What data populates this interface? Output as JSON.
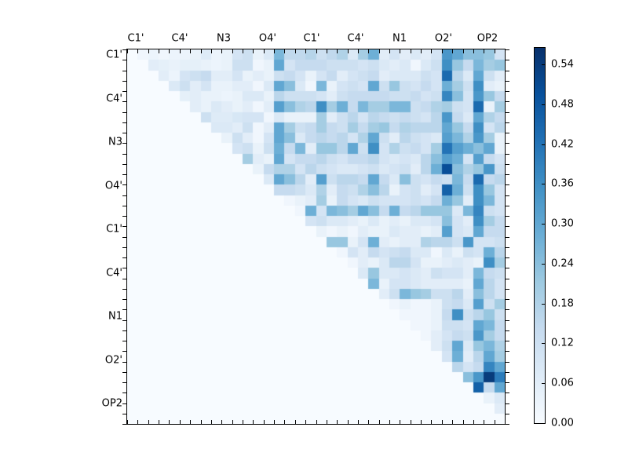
{
  "chart_data": {
    "type": "heatmap",
    "title": "",
    "description": "Upper-triangular pairwise correlation heatmap (Blues colormap) over 36 atom positions grouped under 9 axis labels; lower triangle is empty (zero).",
    "n": 36,
    "cells_per_label_group": 4,
    "x_tick_labels": [
      "C1'",
      "C4'",
      "N3",
      "O4'",
      "C1'",
      "C4'",
      "N1",
      "O2'",
      "OP2"
    ],
    "y_tick_labels": [
      "C1'",
      "C4'",
      "N3",
      "O4'",
      "C1'",
      "C4'",
      "N1",
      "O2'",
      "OP2"
    ],
    "vmin": 0.0,
    "vmax": 0.565,
    "grid": false,
    "legend_position": "right-colorbar",
    "colorbar_tick_values": [
      0.0,
      0.06,
      0.12,
      0.18,
      0.24,
      0.3,
      0.36,
      0.42,
      0.48,
      0.54
    ],
    "colorbar_tick_labels": [
      "0.00",
      "0.06",
      "0.12",
      "0.18",
      "0.24",
      "0.30",
      "0.36",
      "0.42",
      "0.48",
      "0.54"
    ],
    "colormap": {
      "name": "Blues",
      "stops_t": [
        0,
        0.125,
        0.25,
        0.375,
        0.5,
        0.625,
        0.75,
        0.875,
        1.0
      ],
      "stops_rgb": [
        [
          247,
          251,
          255
        ],
        [
          222,
          235,
          247
        ],
        [
          198,
          219,
          239
        ],
        [
          158,
          202,
          225
        ],
        [
          107,
          174,
          214
        ],
        [
          66,
          146,
          198
        ],
        [
          33,
          113,
          181
        ],
        [
          8,
          81,
          156
        ],
        [
          8,
          48,
          107
        ]
      ]
    },
    "accent_colors": {
      "min": "#f7fbff",
      "max": "#08306b",
      "frame": "#000000",
      "background": "#ffffff"
    },
    "matrix": [
      [
        0,
        0.02,
        0.03,
        0.02,
        0.03,
        0.03,
        0.04,
        0.07,
        0.03,
        0.04,
        0.1,
        0.12,
        0.04,
        0.08,
        0.26,
        0.15,
        0.15,
        0.17,
        0.12,
        0.15,
        0.18,
        0.08,
        0.2,
        0.28,
        0.06,
        0.1,
        0.06,
        0.08,
        0.06,
        0.1,
        0.34,
        0.3,
        0.24,
        0.24,
        0.22,
        0.1
      ],
      [
        0,
        0,
        0.06,
        0.05,
        0.04,
        0.05,
        0.05,
        0.04,
        0.03,
        0.04,
        0.12,
        0.12,
        0.02,
        0.04,
        0.3,
        0.1,
        0.14,
        0.14,
        0.14,
        0.12,
        0.12,
        0.12,
        0.1,
        0.12,
        0.08,
        0.06,
        0.08,
        0.02,
        0.08,
        0.12,
        0.36,
        0.22,
        0.14,
        0.26,
        0.2,
        0.22
      ],
      [
        0,
        0,
        0,
        0.06,
        0.03,
        0.1,
        0.12,
        0.14,
        0.06,
        0.06,
        0.1,
        0.04,
        0.06,
        0.04,
        0.12,
        0.14,
        0.1,
        0.04,
        0.1,
        0.14,
        0.06,
        0.1,
        0.12,
        0.14,
        0.06,
        0.08,
        0.08,
        0.08,
        0.12,
        0.1,
        0.44,
        0.16,
        0.08,
        0.3,
        0.12,
        0.06
      ],
      [
        0,
        0,
        0,
        0,
        0.08,
        0.12,
        0.06,
        0.1,
        0.04,
        0.04,
        0.06,
        0.06,
        0.02,
        0.08,
        0.3,
        0.24,
        0.08,
        0.02,
        0.26,
        0.04,
        0.1,
        0.12,
        0.1,
        0.3,
        0.12,
        0.22,
        0.12,
        0.1,
        0.14,
        0.1,
        0.28,
        0.2,
        0.12,
        0.36,
        0.06,
        0.04
      ],
      [
        0,
        0,
        0,
        0,
        0,
        0.05,
        0.06,
        0.04,
        0.04,
        0.03,
        0.04,
        0.08,
        0.08,
        0.04,
        0.16,
        0.12,
        0.12,
        0.12,
        0.1,
        0.06,
        0.12,
        0.14,
        0.14,
        0.14,
        0.14,
        0.12,
        0.12,
        0.14,
        0.1,
        0.12,
        0.38,
        0.24,
        0.1,
        0.34,
        0.22,
        0.14
      ],
      [
        0,
        0,
        0,
        0,
        0,
        0,
        0.06,
        0.04,
        0.08,
        0.06,
        0.04,
        0.06,
        0.02,
        0.06,
        0.32,
        0.24,
        0.18,
        0.16,
        0.36,
        0.2,
        0.28,
        0.14,
        0.26,
        0.2,
        0.2,
        0.26,
        0.26,
        0.12,
        0.14,
        0.18,
        0.2,
        0.12,
        0.1,
        0.44,
        0.04,
        0.2
      ],
      [
        0,
        0,
        0,
        0,
        0,
        0,
        0,
        0.12,
        0.07,
        0.07,
        0.09,
        0.1,
        0.1,
        0.02,
        0.08,
        0.04,
        0.04,
        0.04,
        0.2,
        0.06,
        0.12,
        0.16,
        0.1,
        0.16,
        0.14,
        0.12,
        0.14,
        0.12,
        0.1,
        0.16,
        0.34,
        0.14,
        0.08,
        0.3,
        0.18,
        0.14
      ],
      [
        0,
        0,
        0,
        0,
        0,
        0,
        0,
        0,
        0.08,
        0.08,
        0.06,
        0.12,
        0.02,
        0.06,
        0.3,
        0.2,
        0.12,
        0.14,
        0.2,
        0.14,
        0.12,
        0.2,
        0.14,
        0.2,
        0.22,
        0.14,
        0.18,
        0.16,
        0.16,
        0.16,
        0.3,
        0.22,
        0.14,
        0.36,
        0.1,
        0.16
      ],
      [
        0,
        0,
        0,
        0,
        0,
        0,
        0,
        0,
        0,
        0.04,
        0.12,
        0.06,
        0.02,
        0.1,
        0.3,
        0.24,
        0.08,
        0.14,
        0.16,
        0.14,
        0.16,
        0.1,
        0.18,
        0.3,
        0.12,
        0.06,
        0.16,
        0.12,
        0.1,
        0.08,
        0.32,
        0.26,
        0.18,
        0.34,
        0.2,
        0.04
      ],
      [
        0,
        0,
        0,
        0,
        0,
        0,
        0,
        0,
        0,
        0,
        0.1,
        0.12,
        0.04,
        0.12,
        0.28,
        0.14,
        0.26,
        0.06,
        0.22,
        0.22,
        0.16,
        0.3,
        0.12,
        0.36,
        0.1,
        0.18,
        0.12,
        0.14,
        0.1,
        0.2,
        0.42,
        0.32,
        0.28,
        0.24,
        0.3,
        0.04
      ],
      [
        0,
        0,
        0,
        0,
        0,
        0,
        0,
        0,
        0,
        0,
        0,
        0.2,
        0.06,
        0.04,
        0.3,
        0.1,
        0.14,
        0.14,
        0.16,
        0.12,
        0.1,
        0.14,
        0.14,
        0.16,
        0.1,
        0.08,
        0.1,
        0.08,
        0.16,
        0.24,
        0.32,
        0.28,
        0.1,
        0.32,
        0.14,
        0.1
      ],
      [
        0,
        0,
        0,
        0,
        0,
        0,
        0,
        0,
        0,
        0,
        0,
        0,
        0.04,
        0.14,
        0.18,
        0.18,
        0.1,
        0.16,
        0.12,
        0.1,
        0.08,
        0.08,
        0.1,
        0.12,
        0.08,
        0.1,
        0.12,
        0.06,
        0.16,
        0.28,
        0.5,
        0.24,
        0.18,
        0.22,
        0.34,
        0.12
      ],
      [
        0,
        0,
        0,
        0,
        0,
        0,
        0,
        0,
        0,
        0,
        0,
        0,
        0,
        0.08,
        0.3,
        0.24,
        0.16,
        0.06,
        0.32,
        0.12,
        0.16,
        0.16,
        0.14,
        0.3,
        0.14,
        0.08,
        0.24,
        0.12,
        0.1,
        0.14,
        0.12,
        0.26,
        0.14,
        0.44,
        0.14,
        0.16
      ],
      [
        0,
        0,
        0,
        0,
        0,
        0,
        0,
        0,
        0,
        0,
        0,
        0,
        0,
        0,
        0.14,
        0.14,
        0.12,
        0.08,
        0.18,
        0.06,
        0.14,
        0.12,
        0.18,
        0.24,
        0.16,
        0.04,
        0.1,
        0.12,
        0.06,
        0.1,
        0.46,
        0.28,
        0.12,
        0.36,
        0.22,
        0.1
      ],
      [
        0,
        0,
        0,
        0,
        0,
        0,
        0,
        0,
        0,
        0,
        0,
        0,
        0,
        0,
        0,
        0.02,
        0.04,
        0.06,
        0.2,
        0.04,
        0.14,
        0.1,
        0.08,
        0.12,
        0.1,
        0.1,
        0.1,
        0.12,
        0.1,
        0.14,
        0.28,
        0.22,
        0.06,
        0.36,
        0.26,
        0.1
      ],
      [
        0,
        0,
        0,
        0,
        0,
        0,
        0,
        0,
        0,
        0,
        0,
        0,
        0,
        0,
        0,
        0,
        0.02,
        0.28,
        0.1,
        0.26,
        0.24,
        0.2,
        0.3,
        0.24,
        0.14,
        0.28,
        0.14,
        0.16,
        0.22,
        0.22,
        0.22,
        0.08,
        0.26,
        0.38,
        0.12,
        0.1
      ],
      [
        0,
        0,
        0,
        0,
        0,
        0,
        0,
        0,
        0,
        0,
        0,
        0,
        0,
        0,
        0,
        0,
        0,
        0.1,
        0.12,
        0.08,
        0.08,
        0.06,
        0.04,
        0.08,
        0.04,
        0.06,
        0.04,
        0.08,
        0.08,
        0.1,
        0.24,
        0.1,
        0.06,
        0.36,
        0.2,
        0.14
      ],
      [
        0,
        0,
        0,
        0,
        0,
        0,
        0,
        0,
        0,
        0,
        0,
        0,
        0,
        0,
        0,
        0,
        0,
        0,
        0.04,
        0.02,
        0.04,
        0.02,
        0.06,
        0.04,
        0.04,
        0.08,
        0.06,
        0.06,
        0.04,
        0.06,
        0.32,
        0.1,
        0.08,
        0.3,
        0.14,
        0.14
      ],
      [
        0,
        0,
        0,
        0,
        0,
        0,
        0,
        0,
        0,
        0,
        0,
        0,
        0,
        0,
        0,
        0,
        0,
        0,
        0,
        0.22,
        0.22,
        0.04,
        0.1,
        0.28,
        0.06,
        0.04,
        0.06,
        0.06,
        0.18,
        0.16,
        0.16,
        0.12,
        0.34,
        0.1,
        0.1,
        0.12
      ],
      [
        0,
        0,
        0,
        0,
        0,
        0,
        0,
        0,
        0,
        0,
        0,
        0,
        0,
        0,
        0,
        0,
        0,
        0,
        0,
        0,
        0.02,
        0.1,
        0.06,
        0.14,
        0.1,
        0.12,
        0.14,
        0.08,
        0.08,
        0.02,
        0.08,
        0.04,
        0.12,
        0.1,
        0.28,
        0.16
      ],
      [
        0,
        0,
        0,
        0,
        0,
        0,
        0,
        0,
        0,
        0,
        0,
        0,
        0,
        0,
        0,
        0,
        0,
        0,
        0,
        0,
        0,
        0.02,
        0.06,
        0.04,
        0.08,
        0.16,
        0.16,
        0.1,
        0.04,
        0.04,
        0.06,
        0.08,
        0.06,
        0.04,
        0.36,
        0.2
      ],
      [
        0,
        0,
        0,
        0,
        0,
        0,
        0,
        0,
        0,
        0,
        0,
        0,
        0,
        0,
        0,
        0,
        0,
        0,
        0,
        0,
        0,
        0,
        0.08,
        0.22,
        0.08,
        0.08,
        0.1,
        0.08,
        0.06,
        0.12,
        0.1,
        0.1,
        0.06,
        0.26,
        0.14,
        0.12
      ],
      [
        0,
        0,
        0,
        0,
        0,
        0,
        0,
        0,
        0,
        0,
        0,
        0,
        0,
        0,
        0,
        0,
        0,
        0,
        0,
        0,
        0,
        0,
        0,
        0.26,
        0.04,
        0.1,
        0.1,
        0.08,
        0.06,
        0.06,
        0.06,
        0.06,
        0.04,
        0.3,
        0.16,
        0.1
      ],
      [
        0,
        0,
        0,
        0,
        0,
        0,
        0,
        0,
        0,
        0,
        0,
        0,
        0,
        0,
        0,
        0,
        0,
        0,
        0,
        0,
        0,
        0,
        0,
        0,
        0.06,
        0.12,
        0.26,
        0.22,
        0.2,
        0.12,
        0.12,
        0.16,
        0.06,
        0.24,
        0.16,
        0.1
      ],
      [
        0,
        0,
        0,
        0,
        0,
        0,
        0,
        0,
        0,
        0,
        0,
        0,
        0,
        0,
        0,
        0,
        0,
        0,
        0,
        0,
        0,
        0,
        0,
        0,
        0,
        0.02,
        0.04,
        0.02,
        0.02,
        0.04,
        0.12,
        0.14,
        0.08,
        0.32,
        0.12,
        0.2
      ],
      [
        0,
        0,
        0,
        0,
        0,
        0,
        0,
        0,
        0,
        0,
        0,
        0,
        0,
        0,
        0,
        0,
        0,
        0,
        0,
        0,
        0,
        0,
        0,
        0,
        0,
        0,
        0.02,
        0.02,
        0.02,
        0.04,
        0.14,
        0.36,
        0.12,
        0.16,
        0.22,
        0.12
      ],
      [
        0,
        0,
        0,
        0,
        0,
        0,
        0,
        0,
        0,
        0,
        0,
        0,
        0,
        0,
        0,
        0,
        0,
        0,
        0,
        0,
        0,
        0,
        0,
        0,
        0,
        0,
        0,
        0.02,
        0.02,
        0.04,
        0.12,
        0.12,
        0.1,
        0.3,
        0.26,
        0.14
      ],
      [
        0,
        0,
        0,
        0,
        0,
        0,
        0,
        0,
        0,
        0,
        0,
        0,
        0,
        0,
        0,
        0,
        0,
        0,
        0,
        0,
        0,
        0,
        0,
        0,
        0,
        0,
        0,
        0,
        0.02,
        0.06,
        0.1,
        0.14,
        0.12,
        0.34,
        0.2,
        0.14
      ],
      [
        0,
        0,
        0,
        0,
        0,
        0,
        0,
        0,
        0,
        0,
        0,
        0,
        0,
        0,
        0,
        0,
        0,
        0,
        0,
        0,
        0,
        0,
        0,
        0,
        0,
        0,
        0,
        0,
        0,
        0.06,
        0.12,
        0.3,
        0.08,
        0.22,
        0.26,
        0.18
      ],
      [
        0,
        0,
        0,
        0,
        0,
        0,
        0,
        0,
        0,
        0,
        0,
        0,
        0,
        0,
        0,
        0,
        0,
        0,
        0,
        0,
        0,
        0,
        0,
        0,
        0,
        0,
        0,
        0,
        0,
        0,
        0.1,
        0.28,
        0.06,
        0.16,
        0.3,
        0.2
      ],
      [
        0,
        0,
        0,
        0,
        0,
        0,
        0,
        0,
        0,
        0,
        0,
        0,
        0,
        0,
        0,
        0,
        0,
        0,
        0,
        0,
        0,
        0,
        0,
        0,
        0,
        0,
        0,
        0,
        0,
        0,
        0,
        0.16,
        0.1,
        0.14,
        0.38,
        0.3
      ],
      [
        0,
        0,
        0,
        0,
        0,
        0,
        0,
        0,
        0,
        0,
        0,
        0,
        0,
        0,
        0,
        0,
        0,
        0,
        0,
        0,
        0,
        0,
        0,
        0,
        0,
        0,
        0,
        0,
        0,
        0,
        0,
        0,
        0.24,
        0.34,
        0.54,
        0.4
      ],
      [
        0,
        0,
        0,
        0,
        0,
        0,
        0,
        0,
        0,
        0,
        0,
        0,
        0,
        0,
        0,
        0,
        0,
        0,
        0,
        0,
        0,
        0,
        0,
        0,
        0,
        0,
        0,
        0,
        0,
        0,
        0,
        0,
        0,
        0.46,
        0.14,
        0.3
      ],
      [
        0,
        0,
        0,
        0,
        0,
        0,
        0,
        0,
        0,
        0,
        0,
        0,
        0,
        0,
        0,
        0,
        0,
        0,
        0,
        0,
        0,
        0,
        0,
        0,
        0,
        0,
        0,
        0,
        0,
        0,
        0,
        0,
        0,
        0,
        0.04,
        0.08
      ],
      [
        0,
        0,
        0,
        0,
        0,
        0,
        0,
        0,
        0,
        0,
        0,
        0,
        0,
        0,
        0,
        0,
        0,
        0,
        0,
        0,
        0,
        0,
        0,
        0,
        0,
        0,
        0,
        0,
        0,
        0,
        0,
        0,
        0,
        0,
        0,
        0.06
      ],
      [
        0,
        0,
        0,
        0,
        0,
        0,
        0,
        0,
        0,
        0,
        0,
        0,
        0,
        0,
        0,
        0,
        0,
        0,
        0,
        0,
        0,
        0,
        0,
        0,
        0,
        0,
        0,
        0,
        0,
        0,
        0,
        0,
        0,
        0,
        0,
        0
      ]
    ]
  }
}
